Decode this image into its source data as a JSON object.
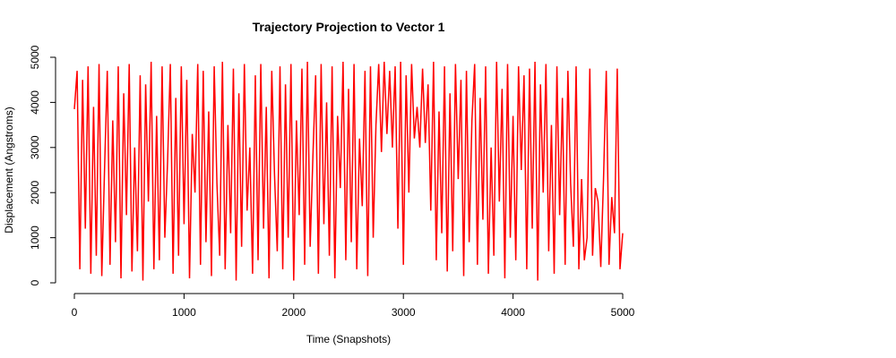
{
  "chart_data": {
    "type": "line",
    "title": "Trajectory Projection to Vector 1",
    "xlabel": "Time (Snapshots)",
    "ylabel": "Displacement (Angstroms)",
    "xlim": [
      0,
      5000
    ],
    "ylim": [
      0,
      5000
    ],
    "xticks": [
      0,
      1000,
      2000,
      3000,
      4000,
      5000
    ],
    "yticks": [
      0,
      1000,
      2000,
      3000,
      4000,
      5000
    ],
    "x": [
      0,
      25,
      50,
      75,
      100,
      125,
      150,
      175,
      200,
      225,
      250,
      275,
      300,
      325,
      350,
      375,
      400,
      425,
      450,
      475,
      500,
      525,
      550,
      575,
      600,
      625,
      650,
      675,
      700,
      725,
      750,
      775,
      800,
      825,
      850,
      875,
      900,
      925,
      950,
      975,
      1000,
      1025,
      1050,
      1075,
      1100,
      1125,
      1150,
      1175,
      1200,
      1225,
      1250,
      1275,
      1300,
      1325,
      1350,
      1375,
      1400,
      1425,
      1450,
      1475,
      1500,
      1525,
      1550,
      1575,
      1600,
      1625,
      1650,
      1675,
      1700,
      1725,
      1750,
      1775,
      1800,
      1825,
      1850,
      1875,
      1900,
      1925,
      1950,
      1975,
      2000,
      2025,
      2050,
      2075,
      2100,
      2125,
      2150,
      2175,
      2200,
      2225,
      2250,
      2275,
      2300,
      2325,
      2350,
      2375,
      2400,
      2425,
      2450,
      2475,
      2500,
      2525,
      2550,
      2575,
      2600,
      2625,
      2650,
      2675,
      2700,
      2725,
      2750,
      2775,
      2800,
      2825,
      2850,
      2875,
      2900,
      2925,
      2950,
      2975,
      3000,
      3025,
      3050,
      3075,
      3100,
      3125,
      3150,
      3175,
      3200,
      3225,
      3250,
      3275,
      3300,
      3325,
      3350,
      3375,
      3400,
      3425,
      3450,
      3475,
      3500,
      3525,
      3550,
      3575,
      3600,
      3625,
      3650,
      3675,
      3700,
      3725,
      3750,
      3775,
      3800,
      3825,
      3850,
      3875,
      3900,
      3925,
      3950,
      3975,
      4000,
      4025,
      4050,
      4075,
      4100,
      4125,
      4150,
      4175,
      4200,
      4225,
      4250,
      4275,
      4300,
      4325,
      4350,
      4375,
      4400,
      4425,
      4450,
      4475,
      4500,
      4525,
      4550,
      4575,
      4600,
      4625,
      4650,
      4675,
      4700,
      4725,
      4750,
      4775,
      4800,
      4825,
      4850,
      4875,
      4900,
      4925,
      4950,
      4975,
      5000
    ],
    "series": [
      {
        "color": "#ff0000",
        "values": [
          3850,
          4700,
          300,
          4500,
          1200,
          4800,
          200,
          3900,
          600,
          4850,
          150,
          2500,
          4700,
          400,
          3600,
          900,
          4800,
          100,
          4200,
          1500,
          4850,
          250,
          3000,
          700,
          4600,
          50,
          4400,
          1800,
          4900,
          300,
          3700,
          500,
          4800,
          1000,
          2700,
          4850,
          200,
          4100,
          600,
          4800,
          1300,
          4500,
          100,
          3300,
          2000,
          4850,
          400,
          4700,
          900,
          3800,
          150,
          4800,
          2200,
          600,
          4900,
          300,
          3500,
          1100,
          4750,
          50,
          4200,
          800,
          4850,
          1600,
          3000,
          200,
          4600,
          500,
          4850,
          1200,
          3900,
          100,
          4700,
          2400,
          700,
          4800,
          300,
          4400,
          1000,
          4850,
          50,
          3600,
          1500,
          4750,
          400,
          4900,
          800,
          2800,
          4600,
          200,
          4850,
          1300,
          4000,
          600,
          4800,
          100,
          3700,
          2100,
          4900,
          500,
          4300,
          900,
          4850,
          300,
          3200,
          1700,
          4700,
          150,
          4800,
          1000,
          3500,
          4850,
          2900,
          4900,
          3300,
          4700,
          3000,
          4800,
          1200,
          4900,
          400,
          4600,
          2000,
          4850,
          3200,
          3900,
          3000,
          4750,
          3100,
          4400,
          1600,
          4900,
          500,
          3800,
          1100,
          4800,
          250,
          4200,
          700,
          4850,
          2300,
          4500,
          150,
          4700,
          900,
          3600,
          4850,
          400,
          4100,
          1400,
          4800,
          200,
          3000,
          600,
          4900,
          1800,
          4300,
          100,
          4850,
          1000,
          3700,
          500,
          4800,
          2500,
          4600,
          300,
          4750,
          1200,
          4900,
          50,
          4400,
          2000,
          4850,
          700,
          3500,
          200,
          4800,
          1500,
          4100,
          400,
          4700,
          2200,
          800,
          4800,
          300,
          2300,
          500,
          1000,
          4750,
          600,
          2100,
          1800,
          350,
          2300,
          4700,
          400,
          1900,
          1100,
          4750,
          300,
          1100
        ]
      }
    ]
  }
}
